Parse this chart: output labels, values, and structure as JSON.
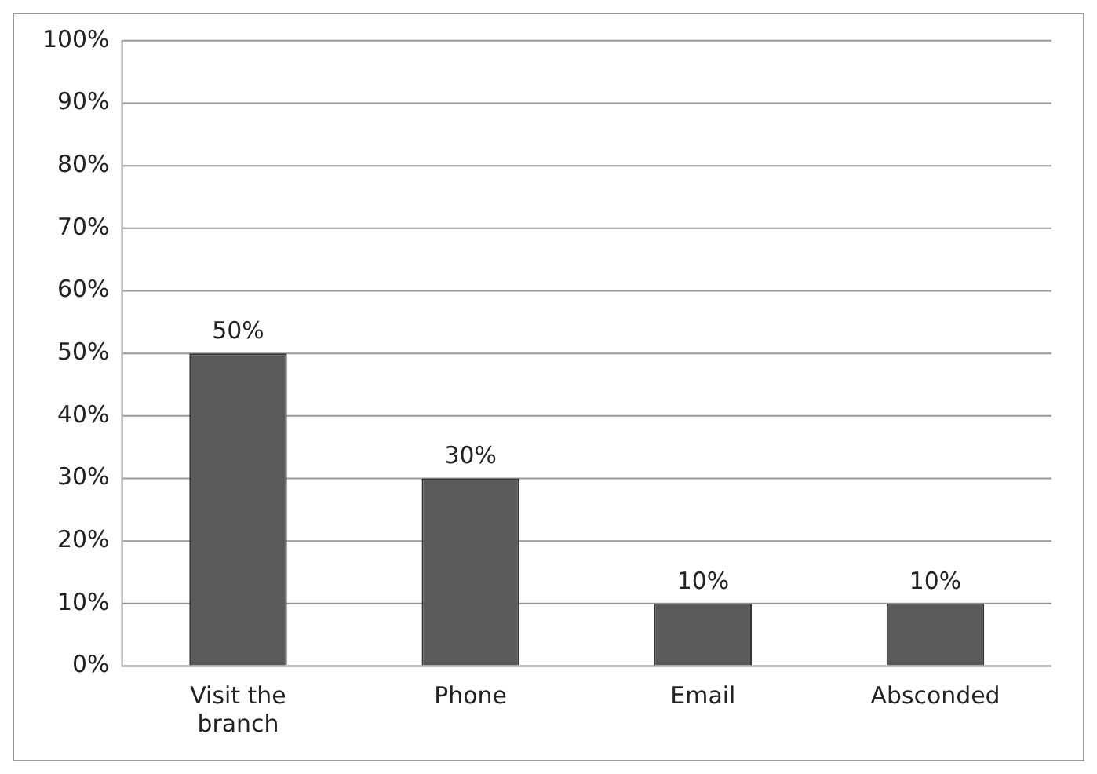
{
  "chart_data": {
    "type": "bar",
    "categories": [
      "Visit the branch",
      "Phone",
      "Email",
      "Absconded"
    ],
    "values": [
      50,
      30,
      10,
      10
    ],
    "color": "#5a5a5a",
    "value_labels": [
      "50%",
      "30%",
      "10%",
      "10%"
    ],
    "ylim": [
      0,
      100
    ],
    "yticks": [
      {
        "value": 0,
        "label": "0%"
      },
      {
        "value": 10,
        "label": "10%"
      },
      {
        "value": 20,
        "label": "20%"
      },
      {
        "value": 30,
        "label": "30%"
      },
      {
        "value": 40,
        "label": "40%"
      },
      {
        "value": 50,
        "label": "50%"
      },
      {
        "value": 60,
        "label": "60%"
      },
      {
        "value": 70,
        "label": "70%"
      },
      {
        "value": 80,
        "label": "80%"
      },
      {
        "value": 90,
        "label": "90%"
      },
      {
        "value": 100,
        "label": "100%"
      }
    ],
    "grid": "y",
    "legend": false
  }
}
